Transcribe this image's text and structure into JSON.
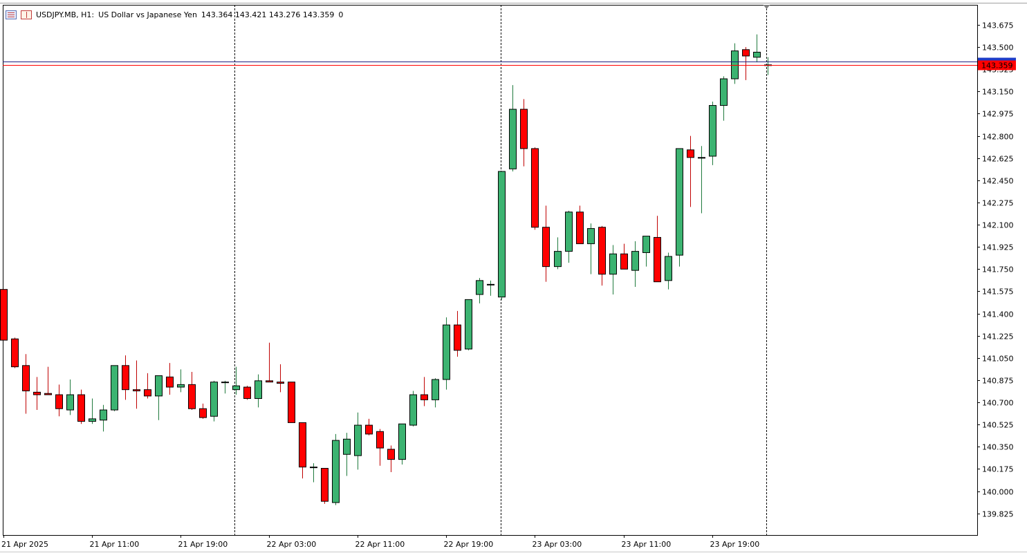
{
  "header": {
    "symbol": "USDJPY.MB, H1:",
    "description": "US Dollar vs Japanese Yen",
    "ohlc": "143.364 143.421 143.276 143.359",
    "extra": "0",
    "icons": [
      "list-icon",
      "book-icon"
    ]
  },
  "colors": {
    "bull": "#3cb371",
    "bear": "#ff0000",
    "outline": "#000000",
    "bid_line": "#ff0000",
    "ask_line": "#1c1c80",
    "price_label_bg": "#ff0000",
    "ask_label_bg": "#1e3cc8"
  },
  "chart_data": {
    "type": "candlestick",
    "symbol": "USDJPY.MB",
    "timeframe": "H1",
    "y_ticks": [
      "143.675",
      "143.500",
      "143.325",
      "143.150",
      "142.975",
      "142.800",
      "142.625",
      "142.450",
      "142.275",
      "142.100",
      "141.925",
      "141.750",
      "141.575",
      "141.400",
      "141.225",
      "141.050",
      "140.875",
      "140.700",
      "140.525",
      "140.350",
      "140.175",
      "140.000",
      "139.825"
    ],
    "ylim": [
      139.7,
      143.8
    ],
    "x_labels": [
      {
        "label": "21 Apr 2025",
        "index": 0
      },
      {
        "label": "21 Apr 11:00",
        "index": 8
      },
      {
        "label": "21 Apr 19:00",
        "index": 16
      },
      {
        "label": "22 Apr 03:00",
        "index": 24
      },
      {
        "label": "22 Apr 11:00",
        "index": 32
      },
      {
        "label": "22 Apr 19:00",
        "index": 40
      },
      {
        "label": "23 Apr 03:00",
        "index": 48
      },
      {
        "label": "23 Apr 11:00",
        "index": 56
      },
      {
        "label": "23 Apr 19:00",
        "index": 64
      }
    ],
    "day_separators": [
      20.9,
      44.9,
      68.9
    ],
    "current_price": "143.359",
    "current_price_value": 143.359,
    "ask_price_value": 143.385,
    "candles": [
      [
        141.59,
        141.59,
        141.19,
        141.19
      ],
      [
        141.2,
        141.21,
        140.97,
        140.98
      ],
      [
        140.99,
        141.08,
        140.61,
        140.79
      ],
      [
        140.78,
        140.9,
        140.64,
        140.76
      ],
      [
        140.77,
        140.98,
        140.76,
        140.76
      ],
      [
        140.76,
        140.84,
        140.59,
        140.65
      ],
      [
        140.64,
        140.88,
        140.6,
        140.76
      ],
      [
        140.76,
        140.8,
        140.53,
        140.55
      ],
      [
        140.55,
        140.73,
        140.53,
        140.57
      ],
      [
        140.56,
        140.68,
        140.47,
        140.64
      ],
      [
        140.64,
        140.99,
        140.63,
        140.99
      ],
      [
        140.99,
        141.07,
        140.72,
        140.8
      ],
      [
        140.8,
        141.03,
        140.65,
        140.79
      ],
      [
        140.8,
        140.93,
        140.73,
        140.75
      ],
      [
        140.75,
        140.91,
        140.56,
        140.91
      ],
      [
        140.9,
        141.01,
        140.76,
        140.82
      ],
      [
        140.82,
        140.96,
        140.78,
        140.84
      ],
      [
        140.84,
        140.94,
        140.64,
        140.65
      ],
      [
        140.65,
        140.69,
        140.57,
        140.58
      ],
      [
        140.59,
        140.87,
        140.55,
        140.86
      ],
      [
        140.86,
        140.87,
        140.77,
        140.86
      ],
      [
        140.8,
        140.98,
        140.76,
        140.83
      ],
      [
        140.82,
        140.83,
        140.72,
        140.73
      ],
      [
        140.73,
        140.92,
        140.66,
        140.87
      ],
      [
        140.87,
        141.17,
        140.86,
        140.86
      ],
      [
        140.86,
        141.0,
        140.78,
        140.85
      ],
      [
        140.86,
        140.86,
        140.54,
        140.54
      ],
      [
        140.54,
        140.54,
        140.1,
        140.19
      ],
      [
        140.19,
        140.22,
        140.07,
        140.19
      ],
      [
        140.18,
        140.18,
        139.9,
        139.92
      ],
      [
        139.91,
        140.45,
        139.89,
        140.4
      ],
      [
        140.29,
        140.46,
        140.12,
        140.41
      ],
      [
        140.28,
        140.62,
        140.17,
        140.52
      ],
      [
        140.52,
        140.57,
        140.44,
        140.45
      ],
      [
        140.47,
        140.49,
        140.2,
        140.34
      ],
      [
        140.33,
        140.36,
        140.15,
        140.25
      ],
      [
        140.25,
        140.53,
        140.21,
        140.53
      ],
      [
        140.52,
        140.79,
        140.51,
        140.76
      ],
      [
        140.76,
        140.9,
        140.67,
        140.72
      ],
      [
        140.72,
        140.89,
        140.66,
        140.88
      ],
      [
        140.88,
        141.37,
        140.8,
        141.31
      ],
      [
        141.31,
        141.42,
        141.06,
        141.11
      ],
      [
        141.12,
        141.51,
        141.11,
        141.51
      ],
      [
        141.55,
        141.68,
        141.48,
        141.66
      ],
      [
        141.63,
        141.66,
        141.54,
        141.63
      ],
      [
        141.53,
        142.52,
        141.51,
        142.52
      ],
      [
        142.54,
        143.2,
        142.52,
        143.01
      ],
      [
        143.01,
        143.09,
        142.56,
        142.7
      ],
      [
        142.7,
        142.71,
        142.06,
        142.08
      ],
      [
        142.08,
        142.25,
        141.65,
        141.77
      ],
      [
        141.77,
        142.0,
        141.75,
        141.89
      ],
      [
        141.89,
        142.21,
        141.8,
        142.2
      ],
      [
        142.2,
        142.25,
        141.96,
        141.95
      ],
      [
        141.95,
        142.11,
        141.71,
        142.07
      ],
      [
        142.08,
        142.09,
        141.62,
        141.71
      ],
      [
        141.71,
        141.94,
        141.55,
        141.87
      ],
      [
        141.87,
        141.95,
        141.76,
        141.75
      ],
      [
        141.74,
        141.97,
        141.61,
        141.89
      ],
      [
        141.88,
        142.0,
        141.77,
        142.01
      ],
      [
        142.0,
        142.17,
        141.65,
        141.65
      ],
      [
        141.66,
        141.88,
        141.59,
        141.85
      ],
      [
        141.86,
        142.7,
        141.77,
        142.7
      ],
      [
        142.69,
        142.8,
        142.24,
        142.63
      ],
      [
        142.63,
        142.72,
        142.19,
        142.63
      ],
      [
        142.64,
        143.07,
        142.57,
        143.04
      ],
      [
        143.04,
        143.27,
        142.92,
        143.25
      ],
      [
        143.25,
        143.53,
        143.21,
        143.47
      ],
      [
        143.48,
        143.5,
        143.24,
        143.43
      ],
      [
        143.42,
        143.6,
        143.38,
        143.46
      ],
      [
        143.36,
        143.42,
        143.28,
        143.36
      ]
    ]
  }
}
